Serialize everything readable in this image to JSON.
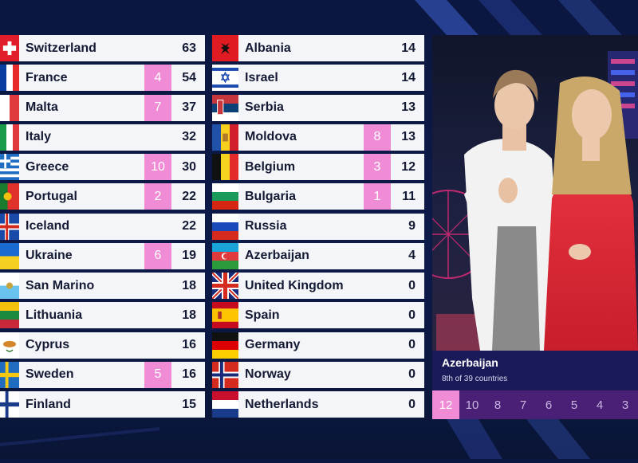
{
  "left_rows": [
    {
      "country": "Switzerland",
      "jury": "",
      "points": "63",
      "flag": "ch"
    },
    {
      "country": "France",
      "jury": "4",
      "points": "54",
      "flag": "fr"
    },
    {
      "country": "Malta",
      "jury": "7",
      "points": "37",
      "flag": "mt"
    },
    {
      "country": "Italy",
      "jury": "",
      "points": "32",
      "flag": "it"
    },
    {
      "country": "Greece",
      "jury": "10",
      "points": "30",
      "flag": "gr"
    },
    {
      "country": "Portugal",
      "jury": "2",
      "points": "22",
      "flag": "pt"
    },
    {
      "country": "Iceland",
      "jury": "",
      "points": "22",
      "flag": "is"
    },
    {
      "country": "Ukraine",
      "jury": "6",
      "points": "19",
      "flag": "ua"
    },
    {
      "country": "San Marino",
      "jury": "",
      "points": "18",
      "flag": "sm"
    },
    {
      "country": "Lithuania",
      "jury": "",
      "points": "18",
      "flag": "lt"
    },
    {
      "country": "Cyprus",
      "jury": "",
      "points": "16",
      "flag": "cy"
    },
    {
      "country": "Sweden",
      "jury": "5",
      "points": "16",
      "flag": "se"
    },
    {
      "country": "Finland",
      "jury": "",
      "points": "15",
      "flag": "fi"
    }
  ],
  "right_rows": [
    {
      "country": "Albania",
      "jury": "",
      "points": "14",
      "flag": "al"
    },
    {
      "country": "Israel",
      "jury": "",
      "points": "14",
      "flag": "il"
    },
    {
      "country": "Serbia",
      "jury": "",
      "points": "13",
      "flag": "rs"
    },
    {
      "country": "Moldova",
      "jury": "8",
      "points": "13",
      "flag": "md"
    },
    {
      "country": "Belgium",
      "jury": "3",
      "points": "12",
      "flag": "be"
    },
    {
      "country": "Bulgaria",
      "jury": "1",
      "points": "11",
      "flag": "bg"
    },
    {
      "country": "Russia",
      "jury": "",
      "points": "9",
      "flag": "ru"
    },
    {
      "country": "Azerbaijan",
      "jury": "",
      "points": "4",
      "flag": "az"
    },
    {
      "country": "United Kingdom",
      "jury": "",
      "points": "0",
      "flag": "gb"
    },
    {
      "country": "Spain",
      "jury": "",
      "points": "0",
      "flag": "es"
    },
    {
      "country": "Germany",
      "jury": "",
      "points": "0",
      "flag": "de"
    },
    {
      "country": "Norway",
      "jury": "",
      "points": "0",
      "flag": "no"
    },
    {
      "country": "Netherlands",
      "jury": "",
      "points": "0",
      "flag": "nl"
    }
  ],
  "caption": {
    "country": "Azerbaijan",
    "subtitle": "8th of 39 countries"
  },
  "point_values": [
    "12",
    "10",
    "8",
    "7",
    "6",
    "5",
    "4",
    "3"
  ],
  "active_point": "12",
  "colors": {
    "jury_badge": "#f08cd6",
    "point_bar": "#4a1f76",
    "caption_bg": "#1a1a58",
    "row_bg": "#f4f5f9",
    "background": "#0b1740"
  }
}
